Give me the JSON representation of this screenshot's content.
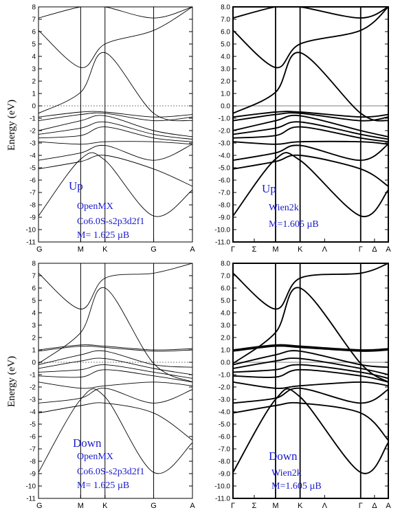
{
  "figure": {
    "ylabel": "Energy (eV)"
  },
  "chart_data": [
    {
      "type": "line",
      "panel": "openmx-up",
      "style": "openmx",
      "ylim": [
        -11,
        8
      ],
      "yticks": [
        "8",
        "7",
        "6",
        "5",
        "4",
        "3",
        "2",
        "1",
        "0",
        "-1",
        "-2",
        "-3",
        "-4",
        "-5",
        "-6",
        "-7",
        "-8",
        "-9",
        "-10",
        "-11"
      ],
      "kpoints": [
        {
          "label": "G",
          "x": 0
        },
        {
          "label": "M",
          "x": 0.274
        },
        {
          "label": "K",
          "x": 0.432
        },
        {
          "label": "G",
          "x": 0.748
        },
        {
          "label": "A",
          "x": 1
        }
      ],
      "vlines": [
        0.274,
        0.432,
        0.748
      ],
      "fermi": 0,
      "annotations": [
        {
          "text": "Up",
          "size": 17
        },
        {
          "text": "OpenMX",
          "size": 14
        },
        {
          "text": "Co6.0S-s2p3d2f1",
          "size": 14
        },
        {
          "text": "M= 1.625 µB",
          "size": 14
        }
      ],
      "series": [
        {
          "x": [
            0,
            0.274,
            0.432,
            0.748,
            1
          ],
          "y": [
            -8.9,
            -4.3,
            -4.4,
            -8.9,
            -6.8
          ]
        },
        {
          "x": [
            0,
            0.274,
            0.432,
            0.748,
            1
          ],
          "y": [
            -5.1,
            -4.5,
            -4.0,
            -5.1,
            -6.5
          ]
        },
        {
          "x": [
            0,
            0.274,
            0.432,
            0.748,
            1
          ],
          "y": [
            -4.4,
            -3.8,
            -3.2,
            -4.4,
            -3.1
          ]
        },
        {
          "x": [
            0,
            0.274,
            0.432,
            0.748,
            1
          ],
          "y": [
            -2.9,
            -3.1,
            -2.9,
            -2.9,
            -3.1
          ]
        },
        {
          "x": [
            0,
            0.274,
            0.432,
            0.748,
            1
          ],
          "y": [
            -2.6,
            -2.4,
            -1.7,
            -2.6,
            -2.9
          ]
        },
        {
          "x": [
            0,
            0.274,
            0.432,
            0.748,
            1
          ],
          "y": [
            -2.3,
            -1.8,
            -1.3,
            -2.3,
            -2.7
          ]
        },
        {
          "x": [
            0,
            0.274,
            0.432,
            0.748,
            1
          ],
          "y": [
            -2.0,
            -1.2,
            -0.8,
            -2.0,
            -2.5
          ]
        },
        {
          "x": [
            0,
            0.274,
            0.432,
            0.748,
            1
          ],
          "y": [
            -1.2,
            -0.7,
            -0.6,
            -1.2,
            -0.9
          ]
        },
        {
          "x": [
            0,
            0.274,
            0.432,
            0.748,
            1
          ],
          "y": [
            -0.9,
            -0.5,
            -0.5,
            -0.9,
            -0.7
          ]
        },
        {
          "x": [
            0,
            0.274,
            0.432,
            0.748,
            1
          ],
          "y": [
            -0.6,
            1.1,
            4.3,
            -0.6,
            -1.2
          ]
        },
        {
          "x": [
            0,
            0.274,
            0.432,
            0.748,
            1
          ],
          "y": [
            6.1,
            3.1,
            5.0,
            6.1,
            8.0
          ]
        },
        {
          "x": [
            0,
            0.274,
            0.432,
            0.748,
            1
          ],
          "y": [
            7.1,
            8.0,
            8.0,
            7.1,
            8.0
          ]
        }
      ]
    },
    {
      "type": "line",
      "panel": "wien2k-up",
      "style": "wien2k",
      "ylim": [
        -11,
        8
      ],
      "yticks": [
        "8.0",
        "7.0",
        "6.0",
        "5.0",
        "4.0",
        "3.0",
        "2.0",
        "1.0",
        "0.0",
        "-1.0",
        "-2.0",
        "-3.0",
        "-4.0",
        "-5.0",
        "-6.0",
        "-7.0",
        "-8.0",
        "-9.0",
        "-10.0",
        "-11.0"
      ],
      "kpoints": [
        {
          "label": "Γ",
          "x": 0
        },
        {
          "label": "Σ",
          "x": 0.137
        },
        {
          "label": "M",
          "x": 0.274
        },
        {
          "label": "K",
          "x": 0.432
        },
        {
          "label": "Λ",
          "x": 0.59
        },
        {
          "label": "Γ",
          "x": 0.822
        },
        {
          "label": "Δ",
          "x": 0.911
        },
        {
          "label": "A",
          "x": 1
        }
      ],
      "vlines": [
        0.274,
        0.432,
        0.822
      ],
      "fermi": 0,
      "annotations": [
        {
          "text": "Up",
          "size": 17
        },
        {
          "text": "Wien2k",
          "size": 14
        },
        {
          "text": "M=1.605 µB",
          "size": 14
        }
      ],
      "series": [
        {
          "x": [
            0,
            0.274,
            0.432,
            0.822,
            1
          ],
          "y": [
            -8.9,
            -4.3,
            -4.4,
            -8.9,
            -6.8
          ]
        },
        {
          "x": [
            0,
            0.274,
            0.432,
            0.822,
            1
          ],
          "y": [
            -5.1,
            -4.5,
            -4.0,
            -5.1,
            -6.5
          ]
        },
        {
          "x": [
            0,
            0.274,
            0.432,
            0.822,
            1
          ],
          "y": [
            -4.4,
            -3.8,
            -3.2,
            -4.4,
            -3.1
          ]
        },
        {
          "x": [
            0,
            0.274,
            0.432,
            0.822,
            1
          ],
          "y": [
            -2.9,
            -3.1,
            -2.9,
            -2.9,
            -3.1
          ]
        },
        {
          "x": [
            0,
            0.274,
            0.432,
            0.822,
            1
          ],
          "y": [
            -2.6,
            -2.4,
            -1.7,
            -2.6,
            -2.9
          ]
        },
        {
          "x": [
            0,
            0.274,
            0.432,
            0.822,
            1
          ],
          "y": [
            -2.3,
            -1.8,
            -1.3,
            -2.3,
            -2.7
          ]
        },
        {
          "x": [
            0,
            0.274,
            0.432,
            0.822,
            1
          ],
          "y": [
            -2.0,
            -1.2,
            -0.8,
            -2.0,
            -2.5
          ]
        },
        {
          "x": [
            0,
            0.274,
            0.432,
            0.822,
            1
          ],
          "y": [
            -1.2,
            -0.7,
            -0.6,
            -1.2,
            -0.9
          ]
        },
        {
          "x": [
            0,
            0.274,
            0.432,
            0.822,
            1
          ],
          "y": [
            -0.9,
            -0.5,
            -0.5,
            -0.9,
            -0.7
          ]
        },
        {
          "x": [
            0,
            0.274,
            0.432,
            0.822,
            1
          ],
          "y": [
            -0.6,
            1.1,
            4.3,
            -0.6,
            -1.2
          ]
        },
        {
          "x": [
            0,
            0.274,
            0.432,
            0.822,
            1
          ],
          "y": [
            6.1,
            3.1,
            5.0,
            6.1,
            8.0
          ]
        },
        {
          "x": [
            0,
            0.274,
            0.432,
            0.822,
            1
          ],
          "y": [
            7.1,
            8.0,
            8.0,
            7.1,
            8.0
          ]
        }
      ]
    },
    {
      "type": "line",
      "panel": "openmx-down",
      "style": "openmx",
      "ylim": [
        -11,
        8
      ],
      "yticks": [
        "8",
        "7",
        "6",
        "5",
        "4",
        "3",
        "2",
        "1",
        "0",
        "-1",
        "-2",
        "-3",
        "-4",
        "-5",
        "-6",
        "-7",
        "-8",
        "-9",
        "-10",
        "-11"
      ],
      "kpoints": [
        {
          "label": "G",
          "x": 0
        },
        {
          "label": "M",
          "x": 0.274
        },
        {
          "label": "K",
          "x": 0.432
        },
        {
          "label": "G",
          "x": 0.748
        },
        {
          "label": "A",
          "x": 1
        }
      ],
      "vlines": [
        0.274,
        0.432,
        0.748
      ],
      "fermi": 0,
      "annotations": [
        {
          "text": "Down",
          "size": 17
        },
        {
          "text": "OpenMX",
          "size": 14
        },
        {
          "text": "Co6.0S-s2p3d2f1",
          "size": 14
        },
        {
          "text": "M= 1.625 µB",
          "size": 14
        }
      ],
      "series": [
        {
          "x": [
            0,
            0.274,
            0.432,
            0.748,
            1
          ],
          "y": [
            -8.9,
            -3.0,
            -2.8,
            -8.9,
            -6.5
          ]
        },
        {
          "x": [
            0,
            0.274,
            0.432,
            0.748,
            1
          ],
          "y": [
            -4.1,
            -3.5,
            -3.3,
            -4.1,
            -6.3
          ]
        },
        {
          "x": [
            0,
            0.274,
            0.432,
            0.748,
            1
          ],
          "y": [
            -3.3,
            -2.9,
            -2.1,
            -3.3,
            -2.2
          ]
        },
        {
          "x": [
            0,
            0.274,
            0.432,
            0.748,
            1
          ],
          "y": [
            -1.6,
            -2.1,
            -1.9,
            -1.6,
            -1.9
          ]
        },
        {
          "x": [
            0,
            0.274,
            0.432,
            0.748,
            1
          ],
          "y": [
            -1.1,
            -1.2,
            -0.6,
            -1.1,
            -1.6
          ]
        },
        {
          "x": [
            0,
            0.274,
            0.432,
            0.748,
            1
          ],
          "y": [
            -0.8,
            -0.6,
            -0.2,
            -0.8,
            -1.3
          ]
        },
        {
          "x": [
            0,
            0.274,
            0.432,
            0.748,
            1
          ],
          "y": [
            -0.5,
            0.1,
            0.3,
            -0.5,
            -1.0
          ]
        },
        {
          "x": [
            0,
            0.274,
            0.432,
            0.748,
            1
          ],
          "y": [
            -0.2,
            0.6,
            0.9,
            -0.2,
            -0.4
          ]
        },
        {
          "x": [
            0,
            0.274,
            0.432,
            0.748,
            1
          ],
          "y": [
            0.9,
            1.3,
            1.2,
            0.9,
            1.0
          ]
        },
        {
          "x": [
            0,
            0.274,
            0.432,
            0.748,
            1
          ],
          "y": [
            1.0,
            1.4,
            1.3,
            1.0,
            1.1
          ]
        },
        {
          "x": [
            0,
            0.274,
            0.432,
            0.748,
            1
          ],
          "y": [
            -0.1,
            2.4,
            6.0,
            -0.1,
            -1.6
          ]
        },
        {
          "x": [
            0,
            0.274,
            0.432,
            0.748,
            1
          ],
          "y": [
            7.2,
            4.3,
            6.8,
            7.2,
            8.0
          ]
        },
        {
          "x": [
            0,
            0.274,
            0.432,
            0.748,
            1
          ],
          "y": [
            8.0,
            8.0,
            8.0,
            8.0,
            8.0
          ]
        }
      ]
    },
    {
      "type": "line",
      "panel": "wien2k-down",
      "style": "wien2k",
      "ylim": [
        -11,
        8
      ],
      "yticks": [
        "8.0",
        "7.0",
        "6.0",
        "5.0",
        "4.0",
        "3.0",
        "2.0",
        "1.0",
        "0.0",
        "-1.0",
        "-2.0",
        "-3.0",
        "-4.0",
        "-5.0",
        "-6.0",
        "-7.0",
        "-8.0",
        "-9.0",
        "-10.0",
        "-11.0"
      ],
      "kpoints": [
        {
          "label": "Γ",
          "x": 0
        },
        {
          "label": "Σ",
          "x": 0.137
        },
        {
          "label": "M",
          "x": 0.274
        },
        {
          "label": "K",
          "x": 0.432
        },
        {
          "label": "Λ",
          "x": 0.59
        },
        {
          "label": "Γ",
          "x": 0.822
        },
        {
          "label": "Δ",
          "x": 0.911
        },
        {
          "label": "A",
          "x": 1
        }
      ],
      "vlines": [
        0.274,
        0.432,
        0.822
      ],
      "fermi": 0,
      "annotations": [
        {
          "text": "Down",
          "size": 17
        },
        {
          "text": "Wien2k",
          "size": 14
        },
        {
          "text": "M=1.605 µB",
          "size": 14
        }
      ],
      "series": [
        {
          "x": [
            0,
            0.274,
            0.432,
            0.822,
            1
          ],
          "y": [
            -8.9,
            -3.0,
            -2.8,
            -8.9,
            -6.5
          ]
        },
        {
          "x": [
            0,
            0.274,
            0.432,
            0.822,
            1
          ],
          "y": [
            -4.1,
            -3.5,
            -3.3,
            -4.1,
            -6.3
          ]
        },
        {
          "x": [
            0,
            0.274,
            0.432,
            0.822,
            1
          ],
          "y": [
            -3.3,
            -2.9,
            -2.1,
            -3.3,
            -2.2
          ]
        },
        {
          "x": [
            0,
            0.274,
            0.432,
            0.822,
            1
          ],
          "y": [
            -1.6,
            -2.1,
            -1.9,
            -1.6,
            -1.9
          ]
        },
        {
          "x": [
            0,
            0.274,
            0.432,
            0.822,
            1
          ],
          "y": [
            -1.1,
            -1.2,
            -0.6,
            -1.1,
            -1.6
          ]
        },
        {
          "x": [
            0,
            0.274,
            0.432,
            0.822,
            1
          ],
          "y": [
            -0.8,
            -0.6,
            -0.2,
            -0.8,
            -1.3
          ]
        },
        {
          "x": [
            0,
            0.274,
            0.432,
            0.822,
            1
          ],
          "y": [
            -0.5,
            0.1,
            0.3,
            -0.5,
            -1.0
          ]
        },
        {
          "x": [
            0,
            0.274,
            0.432,
            0.822,
            1
          ],
          "y": [
            -0.2,
            0.6,
            0.9,
            -0.2,
            -0.4
          ]
        },
        {
          "x": [
            0,
            0.274,
            0.432,
            0.822,
            1
          ],
          "y": [
            0.9,
            1.3,
            1.2,
            0.9,
            1.0
          ]
        },
        {
          "x": [
            0,
            0.274,
            0.432,
            0.822,
            1
          ],
          "y": [
            1.0,
            1.4,
            1.3,
            1.0,
            1.1
          ]
        },
        {
          "x": [
            0,
            0.274,
            0.432,
            0.822,
            1
          ],
          "y": [
            -0.1,
            2.4,
            6.0,
            -0.1,
            -1.6
          ]
        },
        {
          "x": [
            0,
            0.274,
            0.432,
            0.822,
            1
          ],
          "y": [
            7.2,
            4.3,
            6.8,
            7.2,
            8.0
          ]
        },
        {
          "x": [
            0,
            0.274,
            0.432,
            0.822,
            1
          ],
          "y": [
            8.0,
            8.0,
            8.0,
            8.0,
            8.0
          ]
        }
      ]
    }
  ]
}
